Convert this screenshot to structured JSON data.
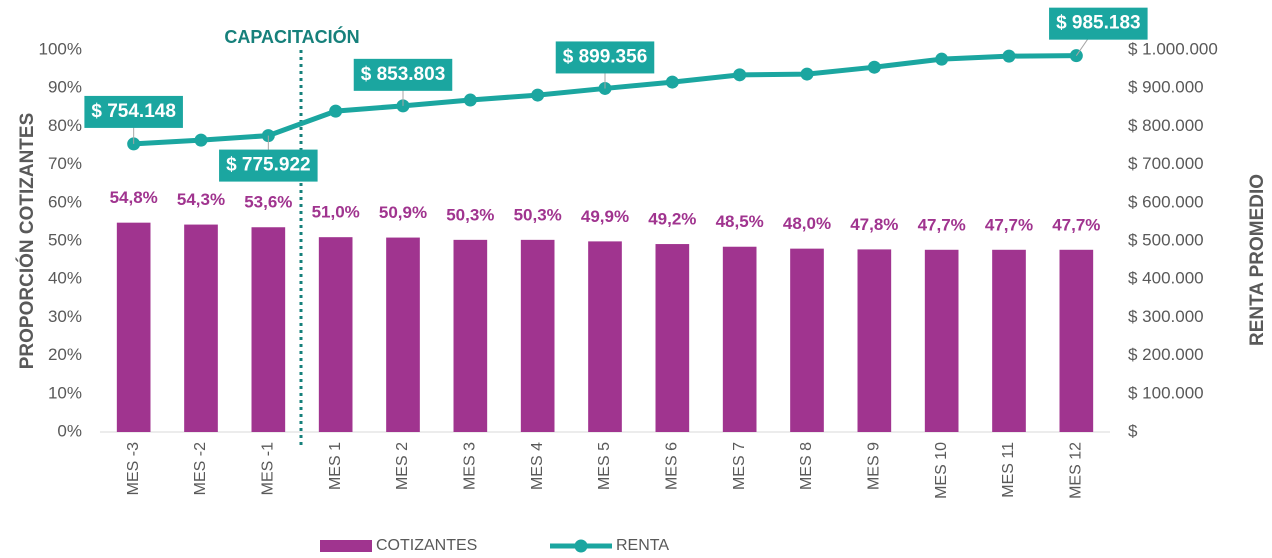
{
  "chart_data": {
    "type": "bar_line",
    "annotation": "CAPACITACIÓN",
    "ylabel": "PROPORCIÓN COTIZANTES",
    "y2label": "RENTA PROMEDIO",
    "categories": [
      "MES -3",
      "MES -2",
      "MES -1",
      "MES 1",
      "MES 2",
      "MES 3",
      "MES 4",
      "MES 5",
      "MES 6",
      "MES 7",
      "MES 8",
      "MES 9",
      "MES 10",
      "MES 11",
      "MES 12"
    ],
    "ylim": [
      0,
      100
    ],
    "yticks": [
      {
        "value": 0,
        "label": "0%"
      },
      {
        "value": 10,
        "label": "10%"
      },
      {
        "value": 20,
        "label": "20%"
      },
      {
        "value": 30,
        "label": "30%"
      },
      {
        "value": 40,
        "label": "40%"
      },
      {
        "value": 50,
        "label": "50%"
      },
      {
        "value": 60,
        "label": "60%"
      },
      {
        "value": 70,
        "label": "70%"
      },
      {
        "value": 80,
        "label": "80%"
      },
      {
        "value": 90,
        "label": "90%"
      },
      {
        "value": 100,
        "label": "100%"
      }
    ],
    "y2lim": [
      0,
      1000000
    ],
    "y2ticks": [
      {
        "value": 0,
        "label": "$"
      },
      {
        "value": 100000,
        "label": "$ 100.000"
      },
      {
        "value": 200000,
        "label": "$ 200.000"
      },
      {
        "value": 300000,
        "label": "$ 300.000"
      },
      {
        "value": 400000,
        "label": "$ 400.000"
      },
      {
        "value": 500000,
        "label": "$ 500.000"
      },
      {
        "value": 600000,
        "label": "$ 600.000"
      },
      {
        "value": 700000,
        "label": "$ 700.000"
      },
      {
        "value": 800000,
        "label": "$ 800.000"
      },
      {
        "value": 900000,
        "label": "$ 900.000"
      },
      {
        "value": 1000000,
        "label": "$ 1.000.000"
      }
    ],
    "legend": "bottom",
    "series": [
      {
        "name": "COTIZANTES",
        "type": "bar",
        "color": "#a0348f",
        "values": [
          54.8,
          54.3,
          53.6,
          51.0,
          50.9,
          50.3,
          50.3,
          49.9,
          49.2,
          48.5,
          48.0,
          47.8,
          47.7,
          47.7,
          47.7
        ],
        "value_labels": [
          "54,8%",
          "54,3%",
          "53,6%",
          "51,0%",
          "50,9%",
          "50,3%",
          "50,3%",
          "49,9%",
          "49,2%",
          "48,5%",
          "48,0%",
          "47,8%",
          "47,7%",
          "47,7%",
          "47,7%"
        ]
      },
      {
        "name": "RENTA",
        "type": "line",
        "axis": "y2",
        "color": "#1ba6a0",
        "values": [
          754148,
          764000,
          775922,
          840000,
          853803,
          869000,
          882000,
          899356,
          916000,
          935000,
          937000,
          955000,
          976000,
          984000,
          985183
        ],
        "value_labels": [
          "$ 754.148",
          null,
          "$ 775.922",
          null,
          "$ 853.803",
          null,
          null,
          "$ 899.356",
          null,
          null,
          null,
          null,
          null,
          null,
          "$ 985.183"
        ]
      }
    ]
  }
}
